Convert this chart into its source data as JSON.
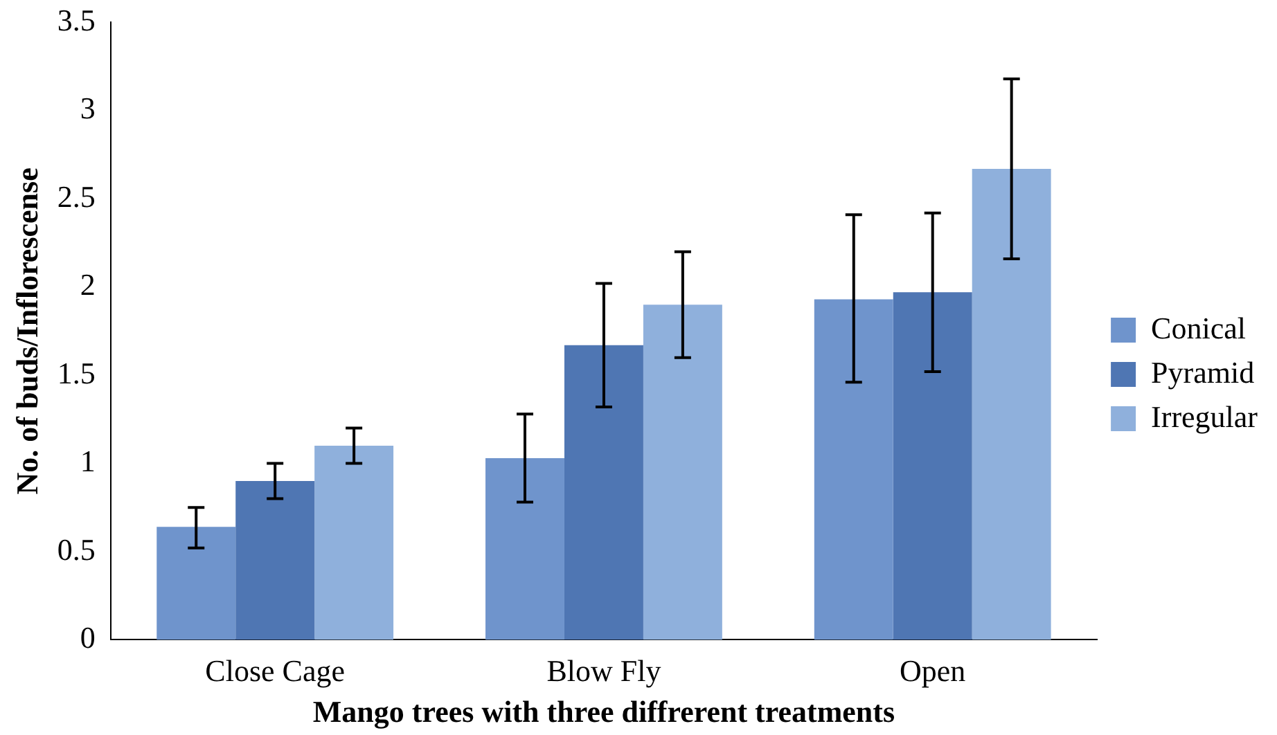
{
  "chart_data": {
    "type": "bar",
    "xlabel": "Mango trees with three diffrerent treatments",
    "ylabel": "No. of buds/Inflorescense",
    "categories": [
      "Close Cage",
      "Blow Fly",
      "Open"
    ],
    "series": [
      {
        "name": "Conical",
        "color": "#6f94cc",
        "values": [
          0.64,
          1.03,
          1.93
        ],
        "errors": [
          [
            0.52,
            0.75
          ],
          [
            0.78,
            1.28
          ],
          [
            1.46,
            2.41
          ]
        ]
      },
      {
        "name": "Pyramid",
        "color": "#4f76b3",
        "values": [
          0.9,
          1.67,
          1.97
        ],
        "errors": [
          [
            0.8,
            1.0
          ],
          [
            1.32,
            2.02
          ],
          [
            1.52,
            2.42
          ]
        ]
      },
      {
        "name": "Irregular",
        "color": "#8fb0dc",
        "values": [
          1.1,
          1.9,
          2.67
        ],
        "errors": [
          [
            1.0,
            1.2
          ],
          [
            1.6,
            2.2
          ],
          [
            2.16,
            3.18
          ]
        ]
      }
    ],
    "ylim": [
      0,
      3.5
    ],
    "yticks": [
      0,
      0.5,
      1,
      1.5,
      2,
      2.5,
      3,
      3.5
    ],
    "grid": false,
    "legend": "right"
  }
}
